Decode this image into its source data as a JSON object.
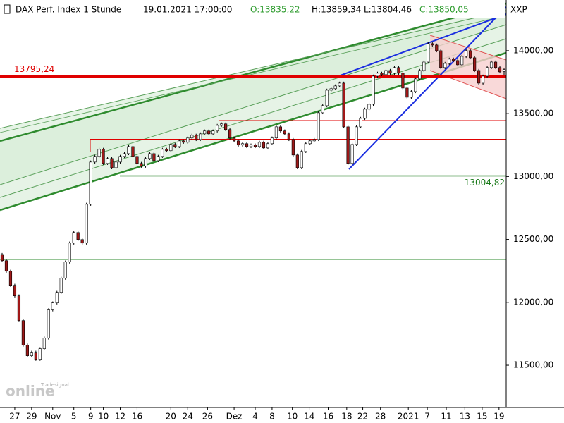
{
  "chart_data": {
    "type": "candlestick",
    "title": "DAX Perf. Index 1 Stunde",
    "timestamp": "19.01.2021 17:00:00",
    "quote": [
      "O:13835,22",
      "H:13859,34",
      "L:13804,46",
      "C:13850,05"
    ],
    "symbol": "XXP",
    "watermark": [
      "Tradesignal",
      "online"
    ],
    "up_color": "#ffffff",
    "down_color": "#a01818",
    "wick_color": "#000000",
    "xlim": [
      -0.5,
      119.5
    ],
    "ylim": [
      11164,
      14403
    ],
    "yticks": [
      {
        "value": 11500,
        "label": "11500,00"
      },
      {
        "value": 12000,
        "label": "12000,00"
      },
      {
        "value": 12500,
        "label": "12500,00"
      },
      {
        "value": 13000,
        "label": "13000,00"
      },
      {
        "value": 13500,
        "label": "13500,00"
      },
      {
        "value": 14000,
        "label": "14000,00"
      }
    ],
    "xticks": [
      {
        "value": 3,
        "label": "27"
      },
      {
        "value": 7,
        "label": "29"
      },
      {
        "value": 12,
        "label": "Nov"
      },
      {
        "value": 17,
        "label": "5"
      },
      {
        "value": 21,
        "label": "9"
      },
      {
        "value": 24,
        "label": "10"
      },
      {
        "value": 28,
        "label": "12"
      },
      {
        "value": 32,
        "label": "16"
      },
      {
        "value": 40,
        "label": "20"
      },
      {
        "value": 44,
        "label": "24"
      },
      {
        "value": 48.7,
        "label": "26"
      },
      {
        "value": 55,
        "label": "Dez"
      },
      {
        "value": 60,
        "label": "4"
      },
      {
        "value": 64,
        "label": "8"
      },
      {
        "value": 68.8,
        "label": "10"
      },
      {
        "value": 72.8,
        "label": "14"
      },
      {
        "value": 77.3,
        "label": "16"
      },
      {
        "value": 81.7,
        "label": "18"
      },
      {
        "value": 85.5,
        "label": "22"
      },
      {
        "value": 89.7,
        "label": "28"
      },
      {
        "value": 96.3,
        "label": "2021"
      },
      {
        "value": 100.8,
        "label": "7"
      },
      {
        "value": 105.3,
        "label": "11"
      },
      {
        "value": 109.7,
        "label": "13"
      },
      {
        "value": 113.8,
        "label": "15"
      },
      {
        "value": 117.8,
        "label": "19"
      }
    ],
    "levels": [
      {
        "value": 13795.24,
        "label": "13795,24",
        "color": "#e00000"
      },
      {
        "value": 13004.82,
        "label": "13004,82",
        "color": "#1a7a1a"
      }
    ],
    "ohlc": [
      [
        12380,
        12392,
        12319,
        12331
      ],
      [
        12331,
        12343,
        12235,
        12247
      ],
      [
        12247,
        12259,
        12123,
        12135
      ],
      [
        12135,
        12147,
        12039,
        12051
      ],
      [
        12051,
        12063,
        11843,
        11855
      ],
      [
        11855,
        11867,
        11648,
        11660
      ],
      [
        11660,
        11672,
        11563,
        11575
      ],
      [
        11575,
        11615,
        11563,
        11603
      ],
      [
        11603,
        11615,
        11535,
        11547
      ],
      [
        11547,
        11643,
        11535,
        11631
      ],
      [
        11631,
        11728,
        11619,
        11716
      ],
      [
        11716,
        11952,
        11704,
        11940
      ],
      [
        11940,
        12007,
        11928,
        11995
      ],
      [
        11995,
        12091,
        11983,
        12079
      ],
      [
        12079,
        12203,
        12067,
        12191
      ],
      [
        12191,
        12332,
        12179,
        12320
      ],
      [
        12320,
        12483,
        12308,
        12471
      ],
      [
        12471,
        12567,
        12459,
        12555
      ],
      [
        12555,
        12567,
        12487,
        12499
      ],
      [
        12499,
        12511,
        12459,
        12471
      ],
      [
        12471,
        12791,
        12459,
        12779
      ],
      [
        12779,
        13127,
        12767,
        13115
      ],
      [
        13115,
        13172,
        13103,
        13160
      ],
      [
        13160,
        13228,
        13148,
        13216
      ],
      [
        13216,
        13228,
        13092,
        13104
      ],
      [
        13104,
        13155,
        13092,
        13143
      ],
      [
        13143,
        13155,
        13058,
        13070
      ],
      [
        13070,
        13127,
        13058,
        13115
      ],
      [
        13115,
        13172,
        13103,
        13160
      ],
      [
        13160,
        13194,
        13148,
        13182
      ],
      [
        13182,
        13250,
        13170,
        13238
      ],
      [
        13238,
        13250,
        13148,
        13160
      ],
      [
        13160,
        13172,
        13092,
        13104
      ],
      [
        13104,
        13116,
        13070,
        13082
      ],
      [
        13082,
        13155,
        13070,
        13143
      ],
      [
        13143,
        13194,
        13131,
        13182
      ],
      [
        13182,
        13194,
        13114,
        13126
      ],
      [
        13126,
        13172,
        13114,
        13160
      ],
      [
        13160,
        13228,
        13148,
        13216
      ],
      [
        13216,
        13228,
        13193,
        13205
      ],
      [
        13205,
        13267,
        13193,
        13255
      ],
      [
        13255,
        13267,
        13226,
        13238
      ],
      [
        13238,
        13295,
        13226,
        13283
      ],
      [
        13283,
        13295,
        13260,
        13272
      ],
      [
        13272,
        13318,
        13260,
        13306
      ],
      [
        13306,
        13340,
        13294,
        13328
      ],
      [
        13328,
        13340,
        13282,
        13294
      ],
      [
        13294,
        13351,
        13282,
        13339
      ],
      [
        13339,
        13374,
        13327,
        13362
      ],
      [
        13362,
        13374,
        13327,
        13339
      ],
      [
        13339,
        13374,
        13327,
        13362
      ],
      [
        13362,
        13418,
        13350,
        13406
      ],
      [
        13406,
        13430,
        13394,
        13418
      ],
      [
        13418,
        13430,
        13361,
        13373
      ],
      [
        13373,
        13385,
        13294,
        13306
      ],
      [
        13306,
        13318,
        13271,
        13283
      ],
      [
        13283,
        13295,
        13238,
        13250
      ],
      [
        13250,
        13273,
        13238,
        13261
      ],
      [
        13261,
        13273,
        13226,
        13238
      ],
      [
        13238,
        13262,
        13226,
        13250
      ],
      [
        13250,
        13262,
        13226,
        13238
      ],
      [
        13238,
        13284,
        13226,
        13272
      ],
      [
        13272,
        13284,
        13215,
        13227
      ],
      [
        13227,
        13273,
        13215,
        13261
      ],
      [
        13261,
        13318,
        13249,
        13306
      ],
      [
        13306,
        13407,
        13294,
        13395
      ],
      [
        13395,
        13407,
        13350,
        13362
      ],
      [
        13362,
        13374,
        13327,
        13339
      ],
      [
        13339,
        13351,
        13282,
        13294
      ],
      [
        13294,
        13306,
        13159,
        13171
      ],
      [
        13171,
        13183,
        13058,
        13070
      ],
      [
        13070,
        13211,
        13058,
        13199
      ],
      [
        13199,
        13273,
        13187,
        13261
      ],
      [
        13261,
        13295,
        13249,
        13283
      ],
      [
        13283,
        13306,
        13271,
        13294
      ],
      [
        13294,
        13519,
        13282,
        13507
      ],
      [
        13507,
        13575,
        13495,
        13563
      ],
      [
        13563,
        13698,
        13551,
        13686
      ],
      [
        13686,
        13710,
        13674,
        13698
      ],
      [
        13698,
        13732,
        13686,
        13720
      ],
      [
        13720,
        13754,
        13708,
        13742
      ],
      [
        13742,
        13754,
        13383,
        13395
      ],
      [
        13395,
        13407,
        13092,
        13104
      ],
      [
        13104,
        13267,
        13092,
        13255
      ],
      [
        13255,
        13407,
        13243,
        13395
      ],
      [
        13395,
        13474,
        13383,
        13462
      ],
      [
        13462,
        13547,
        13450,
        13535
      ],
      [
        13535,
        13586,
        13523,
        13574
      ],
      [
        13574,
        13810,
        13562,
        13798
      ],
      [
        13798,
        13833,
        13786,
        13821
      ],
      [
        13821,
        13833,
        13798,
        13810
      ],
      [
        13810,
        13855,
        13798,
        13843
      ],
      [
        13843,
        13855,
        13809,
        13821
      ],
      [
        13821,
        13878,
        13809,
        13866
      ],
      [
        13866,
        13878,
        13809,
        13821
      ],
      [
        13821,
        13833,
        13691,
        13703
      ],
      [
        13703,
        13715,
        13618,
        13630
      ],
      [
        13630,
        13687,
        13618,
        13675
      ],
      [
        13675,
        13788,
        13663,
        13776
      ],
      [
        13776,
        13855,
        13764,
        13843
      ],
      [
        13843,
        13922,
        13831,
        13910
      ],
      [
        13910,
        14068,
        13898,
        14056
      ],
      [
        14056,
        14068,
        14033,
        14045
      ],
      [
        14045,
        14057,
        13988,
        14000
      ],
      [
        14000,
        14012,
        13854,
        13866
      ],
      [
        13866,
        13911,
        13854,
        13899
      ],
      [
        13899,
        13945,
        13887,
        13933
      ],
      [
        13933,
        13945,
        13910,
        13922
      ],
      [
        13922,
        13934,
        13876,
        13888
      ],
      [
        13888,
        13967,
        13876,
        13955
      ],
      [
        13955,
        14012,
        13943,
        14000
      ],
      [
        14000,
        14012,
        13932,
        13944
      ],
      [
        13944,
        13956,
        13831,
        13843
      ],
      [
        13843,
        13855,
        13730,
        13742
      ],
      [
        13742,
        13810,
        13730,
        13798
      ],
      [
        13798,
        13878,
        13786,
        13866
      ],
      [
        13866,
        13922,
        13854,
        13910
      ],
      [
        13910,
        13922,
        13854,
        13866
      ],
      [
        13866,
        13878,
        13820,
        13832
      ],
      [
        13835.22,
        13859.34,
        13804.46,
        13850.05
      ]
    ]
  }
}
